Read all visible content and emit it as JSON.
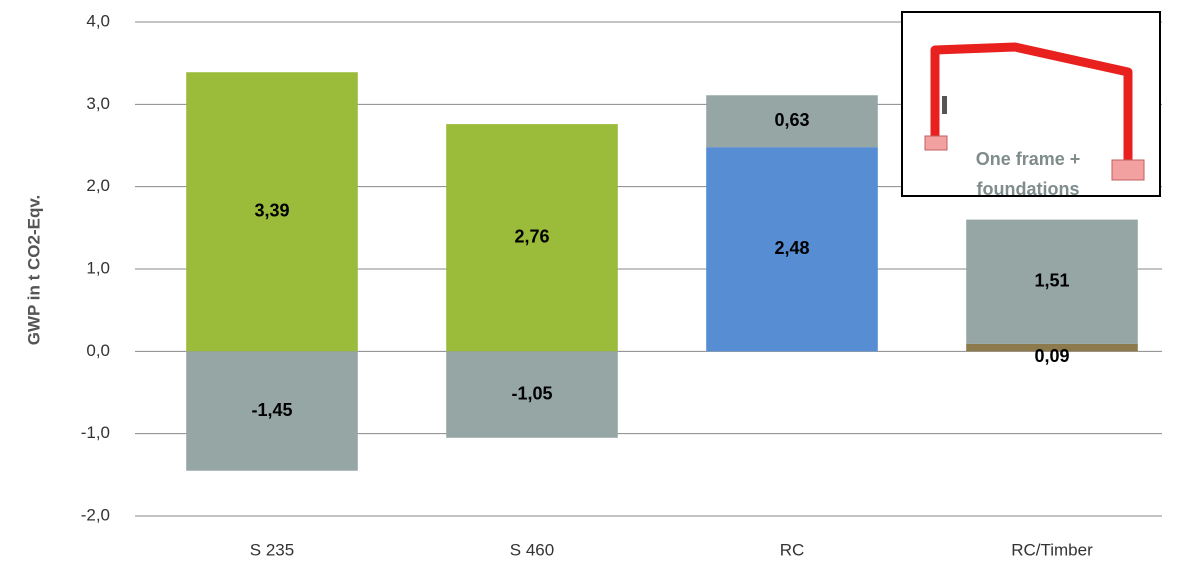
{
  "chart_data": {
    "type": "stacked_bar",
    "y_label": "GWP in t  CO2-Eqv.",
    "annotation": [
      "One  frame +",
      "foundations"
    ],
    "categories": [
      "S 235",
      "S 460",
      "RC",
      "RC/Timber"
    ],
    "series": [
      {
        "color": "#9bbb3b",
        "values": [
          3.39,
          2.76,
          null,
          null
        ],
        "value_labels": [
          "3,39",
          "2,76",
          null,
          null
        ]
      },
      {
        "color": "#568dd3",
        "values": [
          null,
          null,
          2.48,
          null
        ],
        "value_labels": [
          null,
          null,
          "2,48",
          null
        ]
      },
      {
        "color": "#8c7a4c",
        "values": [
          null,
          null,
          null,
          0.09
        ],
        "value_labels": [
          null,
          null,
          null,
          "0,09"
        ]
      },
      {
        "color": "#95a6a5",
        "values": [
          -1.45,
          -1.05,
          0.63,
          1.51
        ],
        "value_labels": [
          "-1,45",
          "-1,05",
          "0,63",
          "1,51"
        ]
      }
    ],
    "ylim": [
      -2,
      4
    ],
    "yticks": [
      {
        "value": -2,
        "label": "-2,0"
      },
      {
        "value": -1,
        "label": "-1,0"
      },
      {
        "value": 0,
        "label": "0,0"
      },
      {
        "value": 1,
        "label": "1,0"
      },
      {
        "value": 2,
        "label": "2,0"
      },
      {
        "value": 3,
        "label": "3,0"
      },
      {
        "value": 4,
        "label": "4,0"
      }
    ],
    "grid": true
  }
}
